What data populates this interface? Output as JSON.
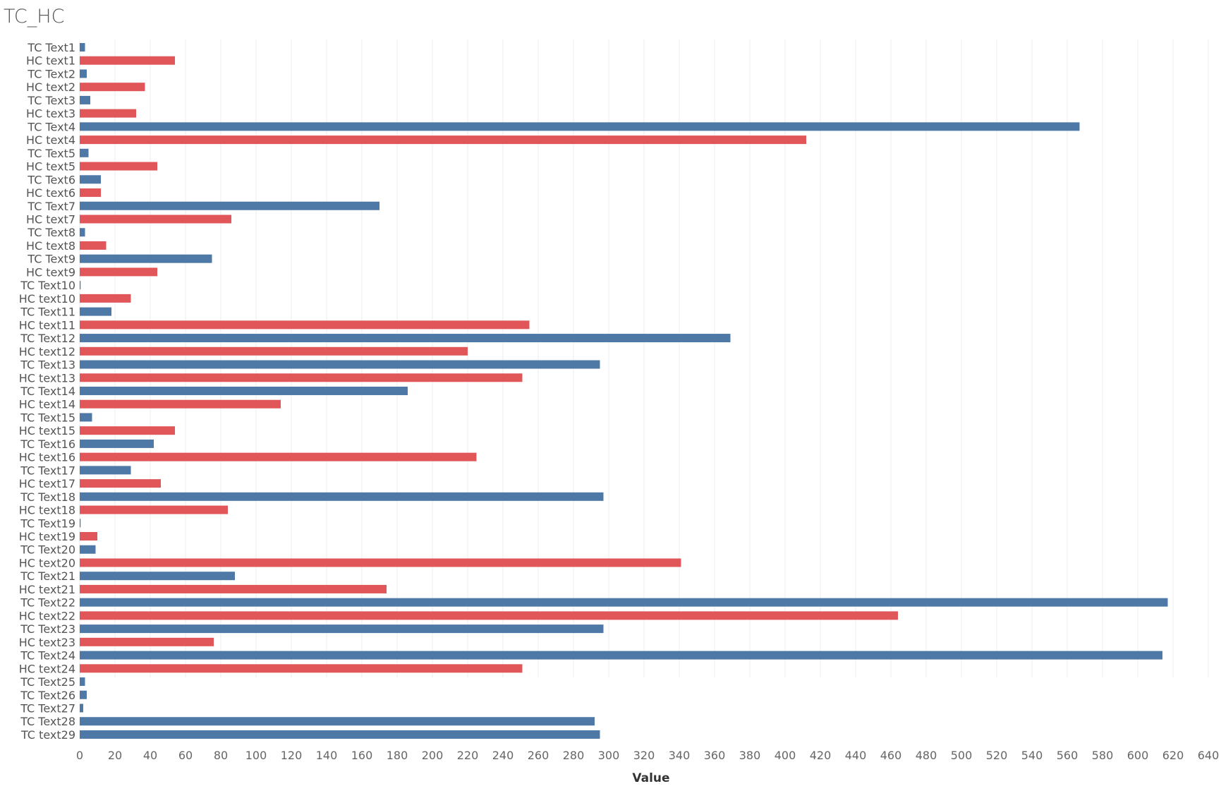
{
  "chart_data": {
    "type": "bar",
    "orientation": "horizontal",
    "title": "TC_HC",
    "xlabel": "Value",
    "ylabel": "",
    "xlim": [
      0,
      640
    ],
    "xticks": [
      0,
      20,
      40,
      60,
      80,
      100,
      120,
      140,
      160,
      180,
      200,
      220,
      240,
      260,
      280,
      300,
      320,
      340,
      360,
      380,
      400,
      420,
      440,
      460,
      480,
      500,
      520,
      540,
      560,
      580,
      600,
      620,
      640
    ],
    "colors": {
      "TC": "#4e79a7",
      "HC": "#e15759"
    },
    "bars": [
      {
        "label": "TC Text1",
        "group": "TC",
        "value": 3
      },
      {
        "label": "HC text1",
        "group": "HC",
        "value": 54
      },
      {
        "label": "TC Text2",
        "group": "TC",
        "value": 4
      },
      {
        "label": "HC text2",
        "group": "HC",
        "value": 37
      },
      {
        "label": "TC Text3",
        "group": "TC",
        "value": 6
      },
      {
        "label": "HC text3",
        "group": "HC",
        "value": 32
      },
      {
        "label": "TC Text4",
        "group": "TC",
        "value": 567
      },
      {
        "label": "HC text4",
        "group": "HC",
        "value": 412
      },
      {
        "label": "TC Text5",
        "group": "TC",
        "value": 5
      },
      {
        "label": "HC text5",
        "group": "HC",
        "value": 44
      },
      {
        "label": "TC Text6",
        "group": "TC",
        "value": 12
      },
      {
        "label": "HC text6",
        "group": "HC",
        "value": 12
      },
      {
        "label": "TC Text7",
        "group": "TC",
        "value": 170
      },
      {
        "label": "HC text7",
        "group": "HC",
        "value": 86
      },
      {
        "label": "TC Text8",
        "group": "TC",
        "value": 3
      },
      {
        "label": "HC text8",
        "group": "HC",
        "value": 15
      },
      {
        "label": "TC Text9",
        "group": "TC",
        "value": 75
      },
      {
        "label": "HC text9",
        "group": "HC",
        "value": 44
      },
      {
        "label": "TC Text10",
        "group": "TC",
        "value": 0.5
      },
      {
        "label": "HC text10",
        "group": "HC",
        "value": 29
      },
      {
        "label": "TC Text11",
        "group": "TC",
        "value": 18
      },
      {
        "label": "HC text11",
        "group": "HC",
        "value": 255
      },
      {
        "label": "TC Text12",
        "group": "TC",
        "value": 369
      },
      {
        "label": "HC text12",
        "group": "HC",
        "value": 220
      },
      {
        "label": "TC Text13",
        "group": "TC",
        "value": 295
      },
      {
        "label": "HC text13",
        "group": "HC",
        "value": 251
      },
      {
        "label": "TC Text14",
        "group": "TC",
        "value": 186
      },
      {
        "label": "HC text14",
        "group": "HC",
        "value": 114
      },
      {
        "label": "TC Text15",
        "group": "TC",
        "value": 7
      },
      {
        "label": "HC text15",
        "group": "HC",
        "value": 54
      },
      {
        "label": "TC Text16",
        "group": "TC",
        "value": 42
      },
      {
        "label": "HC text16",
        "group": "HC",
        "value": 225
      },
      {
        "label": "TC Text17",
        "group": "TC",
        "value": 29
      },
      {
        "label": "HC text17",
        "group": "HC",
        "value": 46
      },
      {
        "label": "TC Text18",
        "group": "TC",
        "value": 297
      },
      {
        "label": "HC text18",
        "group": "HC",
        "value": 84
      },
      {
        "label": "TC Text19",
        "group": "TC",
        "value": 0.5
      },
      {
        "label": "HC text19",
        "group": "HC",
        "value": 10
      },
      {
        "label": "TC Text20",
        "group": "TC",
        "value": 9
      },
      {
        "label": "HC text20",
        "group": "HC",
        "value": 341
      },
      {
        "label": "TC Text21",
        "group": "TC",
        "value": 88
      },
      {
        "label": "HC text21",
        "group": "HC",
        "value": 174
      },
      {
        "label": "TC Text22",
        "group": "TC",
        "value": 617
      },
      {
        "label": "HC text22",
        "group": "HC",
        "value": 464
      },
      {
        "label": "TC Text23",
        "group": "TC",
        "value": 297
      },
      {
        "label": "HC text23",
        "group": "HC",
        "value": 76
      },
      {
        "label": "TC Text24",
        "group": "TC",
        "value": 614
      },
      {
        "label": "HC text24",
        "group": "HC",
        "value": 251
      },
      {
        "label": "TC Text25",
        "group": "TC",
        "value": 3
      },
      {
        "label": "TC Text26",
        "group": "TC",
        "value": 4
      },
      {
        "label": "TC Text27",
        "group": "TC",
        "value": 2
      },
      {
        "label": "TC Text28",
        "group": "TC",
        "value": 292
      },
      {
        "label": "TC text29",
        "group": "TC",
        "value": 295
      }
    ]
  }
}
